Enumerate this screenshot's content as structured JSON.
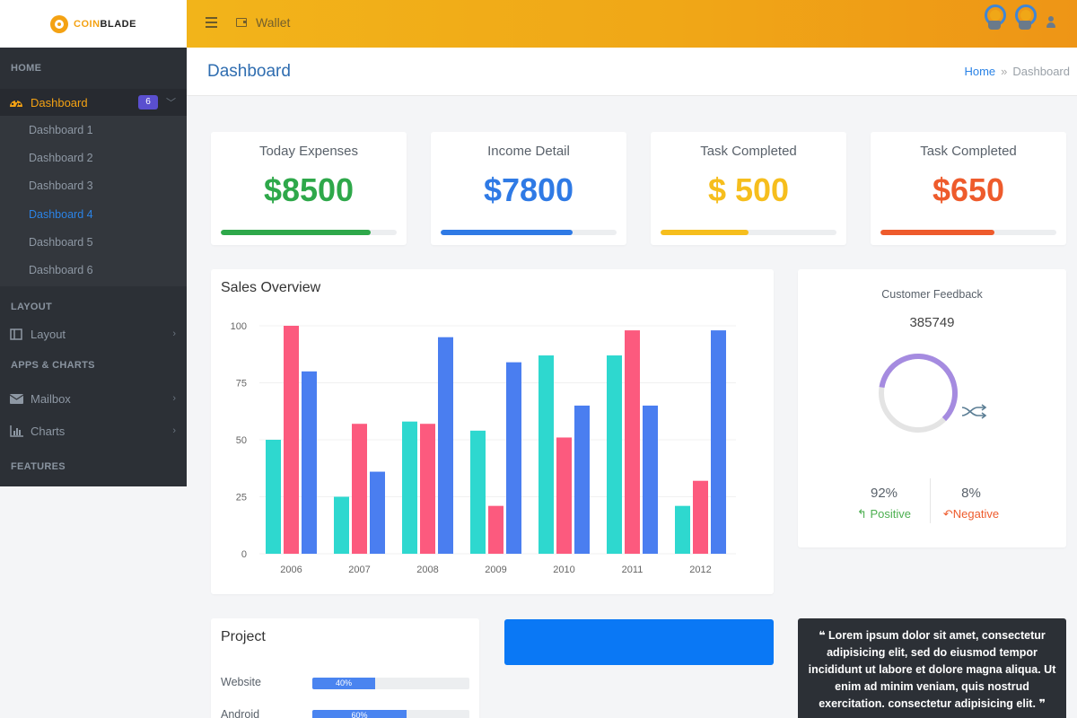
{
  "brand": {
    "name_part1": "COIN",
    "name_part2": "BLADE"
  },
  "sidebar": {
    "sections": {
      "home": "HOME",
      "layout": "LAYOUT",
      "apps": "APPS & CHARTS",
      "features": "FEATURES"
    },
    "dashboard": {
      "label": "Dashboard",
      "badge": "6"
    },
    "submenu": [
      "Dashboard 1",
      "Dashboard 2",
      "Dashboard 3",
      "Dashboard 4",
      "Dashboard 5",
      "Dashboard 6"
    ],
    "active_submenu": "Dashboard 4",
    "items": {
      "layout": "Layout",
      "mailbox": "Mailbox",
      "charts": "Charts"
    }
  },
  "topbar": {
    "wallet": "Wallet"
  },
  "page": {
    "title": "Dashboard",
    "breadcrumb": {
      "home": "Home",
      "sep": "»",
      "current": "Dashboard"
    }
  },
  "stats": [
    {
      "label": "Today Expenses",
      "value": "$8500",
      "color": "#2ea84a",
      "progress": 0.85
    },
    {
      "label": "Income Detail",
      "value": "$7800",
      "color": "#2f7ae5",
      "progress": 0.75
    },
    {
      "label": "Task Completed",
      "value": "$ 500",
      "color": "#f6be1d",
      "progress": 0.5
    },
    {
      "label": "Task Completed",
      "value": "$650",
      "color": "#ee5b2c",
      "progress": 0.65
    }
  ],
  "sales": {
    "title": "Sales Overview",
    "chart_data": {
      "type": "bar",
      "categories": [
        "2006",
        "2007",
        "2008",
        "2009",
        "2010",
        "2011",
        "2012"
      ],
      "series": [
        {
          "values": [
            50,
            25,
            58,
            54,
            87,
            87,
            21
          ],
          "color": "#2ed8cf"
        },
        {
          "values": [
            100,
            57,
            57,
            21,
            51,
            98,
            32
          ],
          "color": "#fc5a7e"
        },
        {
          "values": [
            80,
            36,
            95,
            84,
            65,
            65,
            98
          ],
          "color": "#4a7ef0"
        }
      ],
      "yticks": [
        "0",
        "25",
        "50",
        "75",
        "100"
      ],
      "ylim": [
        0,
        100
      ],
      "grid": true
    }
  },
  "feedback": {
    "title": "Customer Feedback",
    "count": "385749",
    "donut_fraction": 0.6,
    "donut_color": "#a58be0",
    "positive": {
      "pct": "92%",
      "label": "Positive",
      "color": "#4caf50"
    },
    "negative": {
      "pct": "8%",
      "label": "Negative",
      "color": "#ee5b2c"
    }
  },
  "project": {
    "title": "Project",
    "rows": [
      {
        "name": "Website",
        "pct": "40%",
        "value": 0.4
      },
      {
        "name": "Android",
        "pct": "60%",
        "value": 0.6
      }
    ]
  },
  "quote": {
    "open": "❝",
    "text": "Lorem ipsum dolor sit amet, consectetur adipisicing elit, sed do eiusmod tempor incididunt ut labore et dolore magna aliqua. Ut enim ad minim veniam, quis nostrud exercitation. consectetur adipisicing elit.",
    "close": "❞"
  }
}
